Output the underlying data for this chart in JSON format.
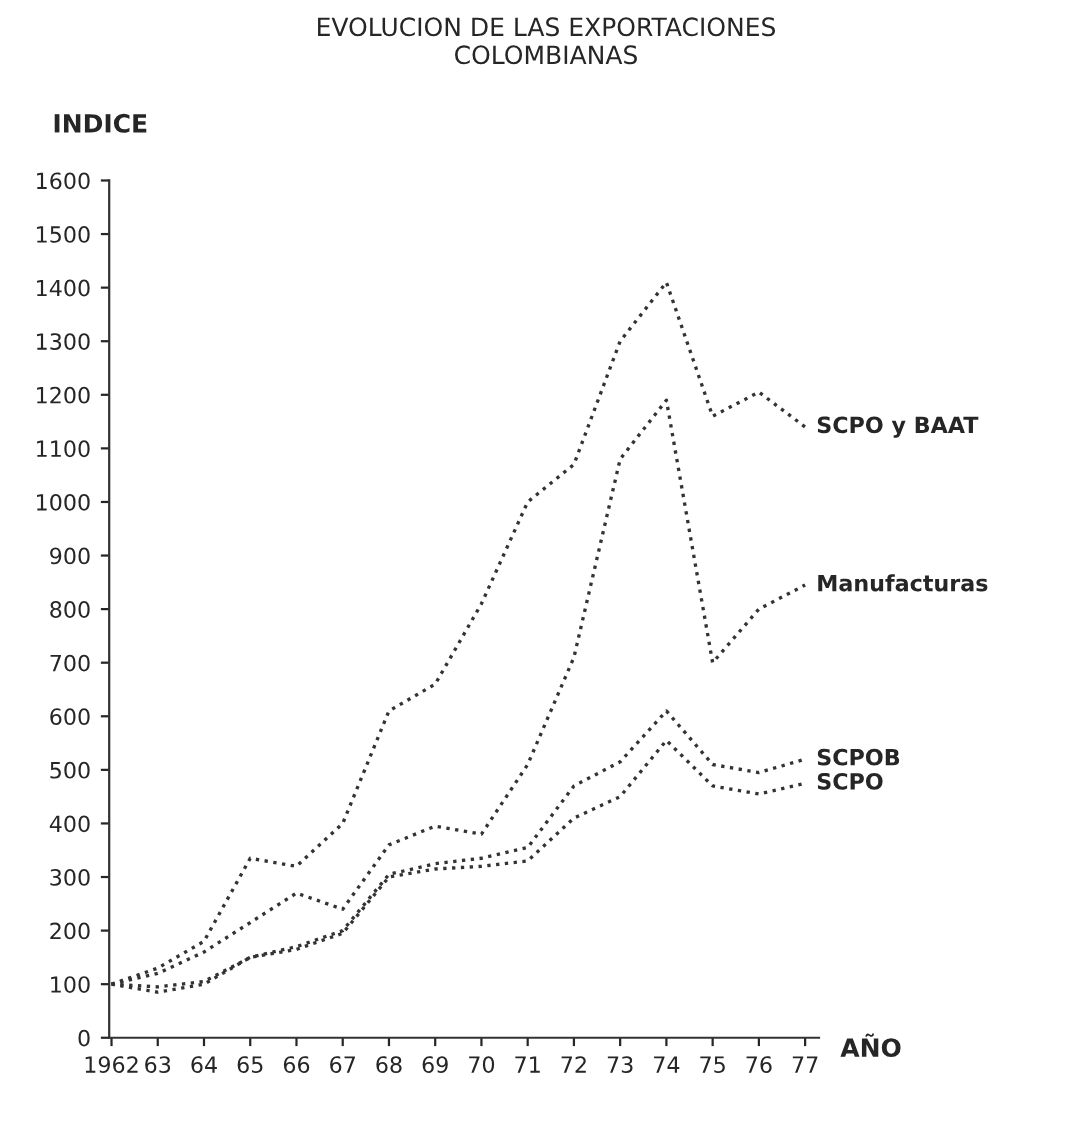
{
  "chart_data": {
    "type": "line",
    "title": "EVOLUCION DE LAS EXPORTACIONES\nCOLOMBIANAS",
    "xlabel": "AÑO",
    "ylabel": "INDICE",
    "categories": [
      "1962",
      "63",
      "64",
      "65",
      "66",
      "67",
      "68",
      "69",
      "70",
      "71",
      "72",
      "73",
      "74",
      "75",
      "76",
      "77"
    ],
    "series": [
      {
        "name": "SCPO y BAAT",
        "color": "#333333",
        "values": [
          100,
          130,
          180,
          335,
          320,
          400,
          610,
          660,
          810,
          1000,
          1070,
          1300,
          1410,
          1160,
          1205,
          1140
        ]
      },
      {
        "name": "Manufacturas",
        "color": "#333333",
        "values": [
          100,
          120,
          160,
          215,
          270,
          240,
          360,
          395,
          380,
          510,
          710,
          1080,
          1190,
          700,
          800,
          845
        ]
      },
      {
        "name": "SCPOB",
        "color": "#333333",
        "values": [
          100,
          95,
          105,
          150,
          170,
          200,
          305,
          325,
          335,
          355,
          470,
          515,
          610,
          510,
          495,
          520
        ]
      },
      {
        "name": "SCPO",
        "color": "#333333",
        "values": [
          100,
          85,
          100,
          150,
          165,
          195,
          300,
          315,
          320,
          330,
          410,
          450,
          555,
          470,
          455,
          475
        ]
      }
    ],
    "ylim": [
      0,
      1600
    ],
    "yticks": [
      0,
      100,
      200,
      300,
      400,
      500,
      600,
      700,
      800,
      900,
      1000,
      1100,
      1200,
      1300,
      1400,
      1500,
      1600
    ],
    "grid": false,
    "legend": false,
    "marker": "none",
    "line_style": "dotted"
  }
}
